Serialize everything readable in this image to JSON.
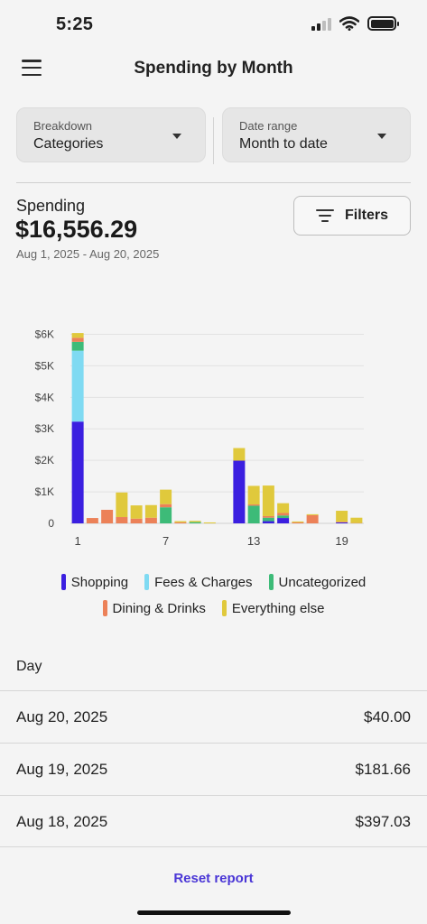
{
  "status_bar": {
    "time": "5:25"
  },
  "header": {
    "title": "Spending by Month"
  },
  "selectors": {
    "breakdown": {
      "label": "Breakdown",
      "value": "Categories"
    },
    "date_range": {
      "label": "Date range",
      "value": "Month to date"
    }
  },
  "summary": {
    "label": "Spending",
    "total": "$16,556.29",
    "range": "Aug 1, 2025 - Aug 20, 2025",
    "filters_label": "Filters"
  },
  "colors": {
    "shopping": "#3b1fe0",
    "fees": "#7fdaf2",
    "uncategorized": "#3dbb78",
    "dining": "#ec8158",
    "everything_else": "#e0c93c",
    "accent": "#4a36d6"
  },
  "chart_data": {
    "type": "bar",
    "stacked": true,
    "x": [
      1,
      2,
      3,
      4,
      5,
      6,
      7,
      8,
      9,
      10,
      11,
      12,
      13,
      14,
      15,
      16,
      17,
      18,
      19,
      20
    ],
    "x_tick_labels": [
      "1",
      "7",
      "13",
      "19"
    ],
    "y_tick_labels": [
      "0",
      "$1K",
      "$2K",
      "$3K",
      "$4K",
      "$5K",
      "$6K"
    ],
    "ylim": [
      0,
      6300
    ],
    "grid": true,
    "legend_position": "bottom",
    "series": [
      {
        "name": "Shopping",
        "values": [
          3230,
          0,
          0,
          0,
          0,
          0,
          0,
          0,
          0,
          0,
          0,
          1990,
          0,
          70,
          170,
          0,
          0,
          0,
          30,
          0
        ]
      },
      {
        "name": "Fees & Charges",
        "values": [
          2250,
          0,
          0,
          0,
          0,
          0,
          0,
          0,
          0,
          0,
          0,
          0,
          0,
          0,
          0,
          0,
          0,
          0,
          0,
          0
        ]
      },
      {
        "name": "Uncategorized",
        "values": [
          280,
          0,
          0,
          0,
          0,
          0,
          510,
          0,
          40,
          0,
          0,
          0,
          560,
          110,
          80,
          0,
          0,
          0,
          0,
          0
        ]
      },
      {
        "name": "Dining & Drinks",
        "values": [
          130,
          170,
          430,
          200,
          150,
          180,
          100,
          30,
          0,
          0,
          0,
          0,
          40,
          50,
          80,
          30,
          260,
          0,
          20,
          10
        ]
      },
      {
        "name": "Everything else",
        "values": [
          150,
          0,
          0,
          780,
          420,
          400,
          460,
          40,
          40,
          30,
          0,
          400,
          590,
          970,
          310,
          30,
          30,
          0,
          350,
          170
        ]
      }
    ]
  },
  "table": {
    "header": "Day",
    "rows": [
      {
        "date": "Aug 20, 2025",
        "amount": "$40.00"
      },
      {
        "date": "Aug 19, 2025",
        "amount": "$181.66"
      },
      {
        "date": "Aug 18, 2025",
        "amount": "$397.03"
      }
    ]
  },
  "footer": {
    "reset_label": "Reset report"
  }
}
